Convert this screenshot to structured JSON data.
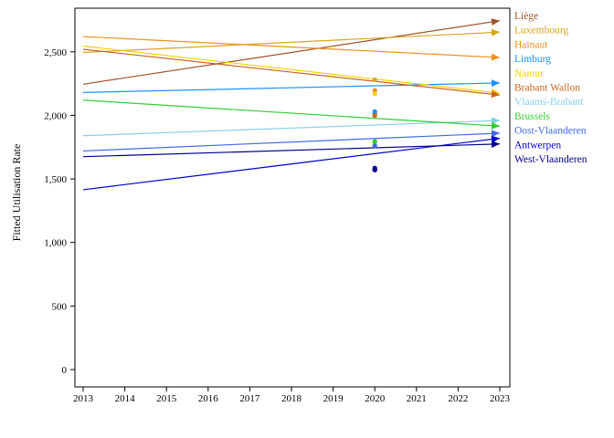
{
  "chart_data": {
    "type": "line",
    "title": "",
    "xlabel": "",
    "ylabel": "Fitted Utilisation Rate",
    "xlim": [
      2013,
      2023
    ],
    "ylim": [
      0,
      2800
    ],
    "x_ticks": [
      "2013",
      "2014",
      "2015",
      "2016",
      "2017",
      "2018",
      "2019",
      "2020",
      "2021",
      "2022",
      "2023"
    ],
    "y_ticks": [
      "0",
      "500",
      "1,000",
      "1,500",
      "2,000",
      "2,500"
    ],
    "grid": false,
    "legend_position": "right",
    "series": [
      {
        "name": "Liège",
        "color": "#a0522d",
        "x": [
          2013,
          2023
        ],
        "y": [
          2245,
          2745
        ],
        "obs_2020": [
          2000,
          2020
        ]
      },
      {
        "name": "Luxembourg",
        "color": "#daa520",
        "x": [
          2013,
          2023
        ],
        "y": [
          2495,
          2655
        ],
        "obs_2020": [
          2280
        ]
      },
      {
        "name": "Hainaut",
        "color": "#f0901e",
        "x": [
          2013,
          2023
        ],
        "y": [
          2620,
          2455
        ],
        "obs_2020": [
          2195
        ]
      },
      {
        "name": "Limburg",
        "color": "#1e90ff",
        "x": [
          2013,
          2023
        ],
        "y": [
          2180,
          2255
        ],
        "obs_2020": [
          2030
        ]
      },
      {
        "name": "Namur",
        "color": "#f5d000",
        "x": [
          2013,
          2023
        ],
        "y": [
          2545,
          2175
        ],
        "obs_2020": [
          2170
        ]
      },
      {
        "name": "Brabant Wallon",
        "color": "#c8641e",
        "x": [
          2013,
          2023
        ],
        "y": [
          2520,
          2160
        ],
        "obs_2020": [
          2000
        ]
      },
      {
        "name": "Vlaams-Brabant",
        "color": "#87ceeb",
        "x": [
          2013,
          2023
        ],
        "y": [
          1840,
          1960
        ],
        "obs_2020": [
          1780
        ]
      },
      {
        "name": "Brussels",
        "color": "#32cd32",
        "x": [
          2013,
          2023
        ],
        "y": [
          2120,
          1915
        ],
        "obs_2020": [
          1795
        ]
      },
      {
        "name": "Oost-Vlaanderen",
        "color": "#4169e1",
        "x": [
          2013,
          2023
        ],
        "y": [
          1720,
          1860
        ],
        "obs_2020": [
          1760
        ]
      },
      {
        "name": "Antwerpen",
        "color": "#0000cd",
        "x": [
          2013,
          2023
        ],
        "y": [
          1415,
          1820
        ],
        "obs_2020": [
          1585,
          1570
        ]
      },
      {
        "name": "West-Vlaanderen",
        "color": "#00008b",
        "x": [
          2013,
          2023
        ],
        "y": [
          1675,
          1775
        ],
        "obs_2020": [
          1575
        ]
      }
    ]
  }
}
